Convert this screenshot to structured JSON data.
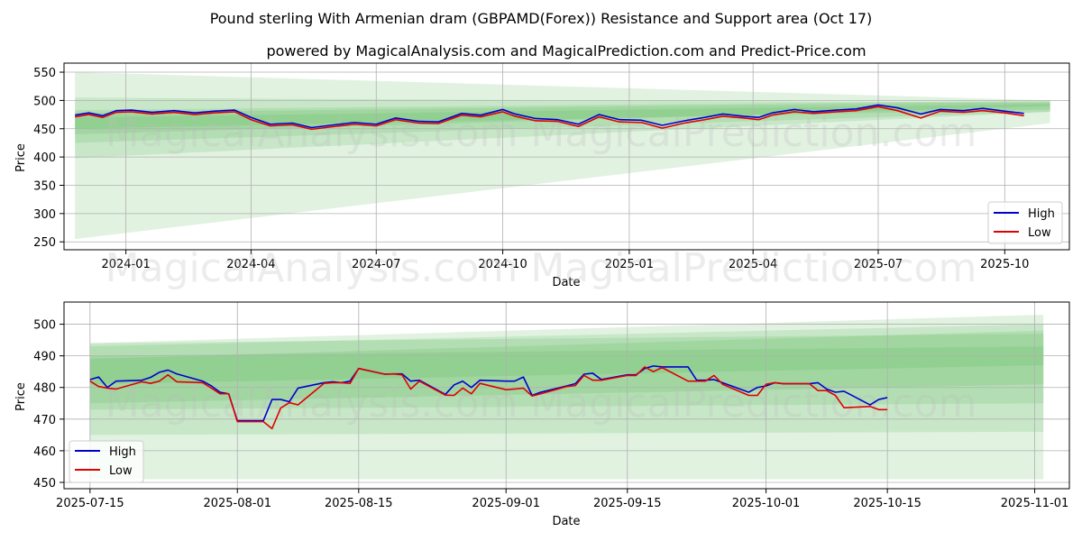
{
  "title": "Pound sterling With Armenian dram (GBPAMD(Forex)) Resistance and Support area (Oct 17)",
  "subtitle": "powered by MagicalAnalysis.com and MagicalPrediction.com and Predict-Price.com",
  "watermark_top": "MagicalAnalysis.com   MagicalPrediction.com",
  "watermark_mid": "MagicalAnalysis.com   MagicalPrediction.com",
  "watermark_bottom": "MagicalAnalysis.com   MagicalPrediction.com",
  "colors": {
    "high": "#0000cc",
    "low": "#e00000",
    "band": "#4caf50",
    "grid": "#b0b0b0"
  },
  "chart_data": [
    {
      "type": "line",
      "xlabel": "Date",
      "ylabel": "Price",
      "x_start": "2023-11-17",
      "x_end": "2025-11-17",
      "ylim": [
        236,
        566
      ],
      "x_ticks": [
        "2024-01-01",
        "2024-04-01",
        "2024-07-01",
        "2024-10-01",
        "2025-01-01",
        "2025-04-01",
        "2025-07-01",
        "2025-10-01"
      ],
      "x_tick_labels": [
        "2024-01",
        "2024-04",
        "2024-07",
        "2024-10",
        "2025-01",
        "2025-04",
        "2025-07",
        "2025-10"
      ],
      "y_ticks": [
        250,
        300,
        350,
        400,
        450,
        500,
        550
      ],
      "grid": true,
      "legend": "bottom-right",
      "bands": [
        {
          "x": [
            "2023-11-25",
            "2025-11-03"
          ],
          "upper": [
            550,
            500
          ],
          "lower": [
            255,
            460
          ]
        },
        {
          "x": [
            "2023-11-25",
            "2025-11-03"
          ],
          "upper": [
            505,
            496
          ],
          "lower": [
            398,
            480
          ]
        },
        {
          "x": [
            "2023-11-25",
            "2025-11-03"
          ],
          "upper": [
            483,
            500
          ],
          "lower": [
            440,
            490
          ]
        },
        {
          "x": [
            "2023-11-25",
            "2025-11-03"
          ],
          "upper": [
            470,
            494
          ],
          "lower": [
            425,
            480
          ]
        },
        {
          "x": [
            "2023-11-25",
            "2025-11-03"
          ],
          "upper": [
            478,
            498
          ],
          "lower": [
            450,
            484
          ]
        }
      ],
      "series": [
        {
          "name": "High",
          "x": [
            "2023-11-25",
            "2023-12-05",
            "2023-12-15",
            "2023-12-25",
            "2024-01-05",
            "2024-01-20",
            "2024-02-05",
            "2024-02-20",
            "2024-03-05",
            "2024-03-20",
            "2024-04-01",
            "2024-04-15",
            "2024-05-01",
            "2024-05-15",
            "2024-06-01",
            "2024-06-15",
            "2024-07-01",
            "2024-07-15",
            "2024-08-01",
            "2024-08-15",
            "2024-09-01",
            "2024-09-15",
            "2024-10-01",
            "2024-10-10",
            "2024-10-25",
            "2024-11-10",
            "2024-11-25",
            "2024-12-10",
            "2024-12-25",
            "2025-01-10",
            "2025-01-25",
            "2025-02-10",
            "2025-02-25",
            "2025-03-10",
            "2025-03-25",
            "2025-04-05",
            "2025-04-15",
            "2025-05-01",
            "2025-05-15",
            "2025-06-01",
            "2025-06-15",
            "2025-07-01",
            "2025-07-15",
            "2025-08-01",
            "2025-08-15",
            "2025-09-01",
            "2025-09-15",
            "2025-10-01",
            "2025-10-15"
          ],
          "values": [
            474,
            478,
            473,
            482,
            483,
            479,
            482,
            478,
            481,
            483,
            470,
            458,
            460,
            452,
            457,
            461,
            458,
            469,
            463,
            462,
            477,
            474,
            484,
            476,
            468,
            466,
            458,
            475,
            466,
            465,
            456,
            464,
            470,
            476,
            472,
            470,
            478,
            484,
            480,
            483,
            485,
            492,
            487,
            476,
            484,
            482,
            486,
            481,
            477
          ]
        },
        {
          "name": "Low",
          "x": [
            "2023-11-25",
            "2023-12-05",
            "2023-12-15",
            "2023-12-25",
            "2024-01-05",
            "2024-01-20",
            "2024-02-05",
            "2024-02-20",
            "2024-03-05",
            "2024-03-20",
            "2024-04-01",
            "2024-04-15",
            "2024-05-01",
            "2024-05-15",
            "2024-06-01",
            "2024-06-15",
            "2024-07-01",
            "2024-07-15",
            "2024-08-01",
            "2024-08-15",
            "2024-09-01",
            "2024-09-15",
            "2024-10-01",
            "2024-10-10",
            "2024-10-25",
            "2024-11-10",
            "2024-11-25",
            "2024-12-10",
            "2024-12-25",
            "2025-01-10",
            "2025-01-25",
            "2025-02-10",
            "2025-02-25",
            "2025-03-10",
            "2025-03-25",
            "2025-04-05",
            "2025-04-15",
            "2025-05-01",
            "2025-05-15",
            "2025-06-01",
            "2025-06-15",
            "2025-07-01",
            "2025-07-15",
            "2025-08-01",
            "2025-08-15",
            "2025-09-01",
            "2025-09-15",
            "2025-10-01",
            "2025-10-15"
          ],
          "values": [
            471,
            475,
            470,
            479,
            480,
            476,
            479,
            475,
            478,
            480,
            466,
            455,
            457,
            449,
            454,
            458,
            455,
            466,
            460,
            459,
            474,
            471,
            480,
            472,
            464,
            463,
            454,
            471,
            462,
            461,
            451,
            460,
            466,
            472,
            469,
            466,
            474,
            480,
            477,
            480,
            482,
            489,
            482,
            469,
            481,
            479,
            482,
            478,
            473
          ]
        }
      ]
    },
    {
      "type": "line",
      "xlabel": "Date",
      "ylabel": "Price",
      "x_start": "2025-07-12",
      "x_end": "2025-11-05",
      "ylim": [
        448,
        507
      ],
      "x_ticks": [
        "2025-07-15",
        "2025-08-01",
        "2025-08-15",
        "2025-09-01",
        "2025-09-15",
        "2025-10-01",
        "2025-10-15",
        "2025-11-01"
      ],
      "x_tick_labels": [
        "2025-07-15",
        "2025-08-01",
        "2025-08-15",
        "2025-09-01",
        "2025-09-15",
        "2025-10-01",
        "2025-10-15",
        "2025-11-01"
      ],
      "y_ticks": [
        450,
        460,
        470,
        480,
        490,
        500
      ],
      "grid": true,
      "legend": "bottom-left",
      "bands": [
        {
          "x": [
            "2025-07-15",
            "2025-11-02"
          ],
          "upper": [
            494,
            503
          ],
          "lower": [
            451,
            451
          ]
        },
        {
          "x": [
            "2025-07-15",
            "2025-11-02"
          ],
          "upper": [
            493,
            500
          ],
          "lower": [
            465,
            466
          ]
        },
        {
          "x": [
            "2025-07-15",
            "2025-11-02"
          ],
          "upper": [
            494,
            497
          ],
          "lower": [
            473,
            475
          ]
        },
        {
          "x": [
            "2025-07-15",
            "2025-11-02"
          ],
          "upper": [
            490,
            493
          ],
          "lower": [
            475,
            481
          ]
        },
        {
          "x": [
            "2025-07-15",
            "2025-11-02"
          ],
          "upper": [
            489,
            498
          ],
          "lower": [
            481,
            487
          ]
        }
      ],
      "series": [
        {
          "name": "High",
          "x": [
            "2025-07-15",
            "2025-07-16",
            "2025-07-17",
            "2025-07-18",
            "2025-07-21",
            "2025-07-22",
            "2025-07-23",
            "2025-07-24",
            "2025-07-25",
            "2025-07-28",
            "2025-07-29",
            "2025-07-30",
            "2025-07-31",
            "2025-08-01",
            "2025-08-04",
            "2025-08-05",
            "2025-08-06",
            "2025-08-07",
            "2025-08-08",
            "2025-08-11",
            "2025-08-12",
            "2025-08-13",
            "2025-08-14",
            "2025-08-15",
            "2025-08-18",
            "2025-08-19",
            "2025-08-20",
            "2025-08-21",
            "2025-08-22",
            "2025-08-25",
            "2025-08-26",
            "2025-08-27",
            "2025-08-28",
            "2025-08-29",
            "2025-09-01",
            "2025-09-02",
            "2025-09-03",
            "2025-09-04",
            "2025-09-05",
            "2025-09-08",
            "2025-09-09",
            "2025-09-10",
            "2025-09-11",
            "2025-09-12",
            "2025-09-15",
            "2025-09-16",
            "2025-09-17",
            "2025-09-18",
            "2025-09-19",
            "2025-09-22",
            "2025-09-23",
            "2025-09-24",
            "2025-09-25",
            "2025-09-26",
            "2025-09-29",
            "2025-09-30",
            "2025-10-01",
            "2025-10-02",
            "2025-10-03",
            "2025-10-06",
            "2025-10-07",
            "2025-10-08",
            "2025-10-09",
            "2025-10-10",
            "2025-10-13",
            "2025-10-14",
            "2025-10-15"
          ],
          "values": [
            482.5,
            483.3,
            480.0,
            482.0,
            482.3,
            483.2,
            484.8,
            485.5,
            484.3,
            482.0,
            480.5,
            478.5,
            478.0,
            469.5,
            469.5,
            476.2,
            476.2,
            475.5,
            479.8,
            481.5,
            481.8,
            481.5,
            482.0,
            486.0,
            484.2,
            484.3,
            484.3,
            482.0,
            482.3,
            477.8,
            480.8,
            482.0,
            480.0,
            482.3,
            482.0,
            482.0,
            483.3,
            477.5,
            478.5,
            480.5,
            481.2,
            484.2,
            484.5,
            482.5,
            484.0,
            484.0,
            486.0,
            486.8,
            486.5,
            486.5,
            482.3,
            482.3,
            482.5,
            481.5,
            478.5,
            480.0,
            480.5,
            481.5,
            481.2,
            481.2,
            481.5,
            479.5,
            478.5,
            478.8,
            474.5,
            476.2,
            476.8
          ]
        },
        {
          "name": "Low",
          "x": [
            "2025-07-15",
            "2025-07-16",
            "2025-07-17",
            "2025-07-18",
            "2025-07-21",
            "2025-07-22",
            "2025-07-23",
            "2025-07-24",
            "2025-07-25",
            "2025-07-28",
            "2025-07-29",
            "2025-07-30",
            "2025-07-31",
            "2025-08-01",
            "2025-08-04",
            "2025-08-05",
            "2025-08-06",
            "2025-08-07",
            "2025-08-08",
            "2025-08-11",
            "2025-08-12",
            "2025-08-13",
            "2025-08-14",
            "2025-08-15",
            "2025-08-18",
            "2025-08-19",
            "2025-08-20",
            "2025-08-21",
            "2025-08-22",
            "2025-08-25",
            "2025-08-26",
            "2025-08-27",
            "2025-08-28",
            "2025-08-29",
            "2025-09-01",
            "2025-09-02",
            "2025-09-03",
            "2025-09-04",
            "2025-09-05",
            "2025-09-08",
            "2025-09-09",
            "2025-09-10",
            "2025-09-11",
            "2025-09-12",
            "2025-09-15",
            "2025-09-16",
            "2025-09-17",
            "2025-09-18",
            "2025-09-19",
            "2025-09-22",
            "2025-09-23",
            "2025-09-24",
            "2025-09-25",
            "2025-09-26",
            "2025-09-29",
            "2025-09-30",
            "2025-10-01",
            "2025-10-02",
            "2025-10-03",
            "2025-10-06",
            "2025-10-07",
            "2025-10-08",
            "2025-10-09",
            "2025-10-10",
            "2025-10-13",
            "2025-10-14",
            "2025-10-15"
          ],
          "values": [
            482.0,
            480.3,
            479.8,
            479.5,
            481.8,
            481.3,
            482.0,
            484.0,
            481.8,
            481.5,
            479.8,
            478.0,
            478.0,
            469.2,
            469.2,
            467.0,
            473.5,
            475.2,
            474.5,
            481.3,
            481.5,
            481.5,
            481.3,
            486.0,
            484.2,
            484.3,
            484.0,
            479.5,
            482.0,
            477.6,
            477.5,
            479.8,
            478.0,
            481.3,
            479.3,
            479.5,
            479.8,
            477.3,
            478.0,
            480.3,
            480.6,
            483.8,
            482.3,
            482.3,
            483.8,
            483.8,
            486.5,
            485.0,
            486.3,
            482.0,
            482.0,
            482.0,
            483.8,
            481.0,
            477.5,
            477.5,
            481.0,
            481.5,
            481.2,
            481.2,
            479.0,
            479.0,
            477.5,
            473.6,
            474.0,
            473.0,
            473.0
          ]
        }
      ]
    }
  ]
}
